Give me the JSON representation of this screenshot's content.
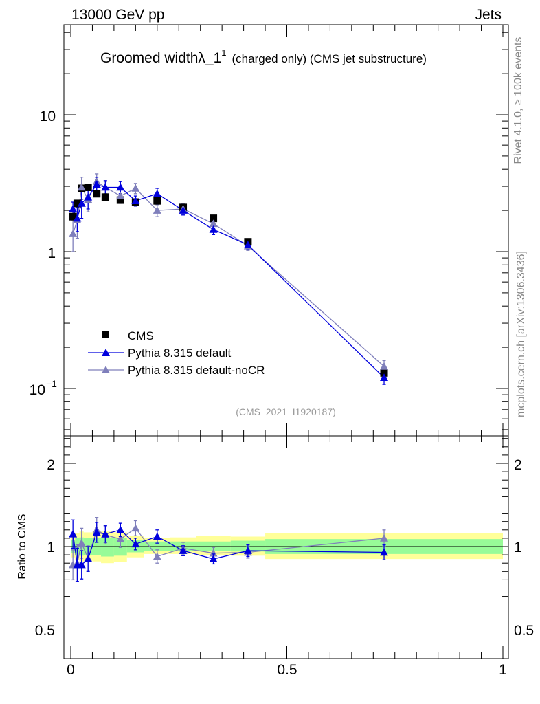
{
  "header": {
    "left_label": "13000 GeV pp",
    "right_label": "Jets"
  },
  "side_labels": {
    "rivet": "Rivet 4.1.0, ≥ 100k events",
    "source": "mcplots.cern.ch [arXiv:1306.3436]"
  },
  "colors": {
    "data": "#000000",
    "pythia_default": "#0000dd",
    "pythia_nocr": "#7f7fbb",
    "band_inner": "#98fb98",
    "band_outer": "#ffff99"
  },
  "chart_data": [
    {
      "type": "scatter",
      "title_main": "Groomed widthλ_1",
      "title_sup": "1",
      "title_suffix": "(charged only) (CMS jet substructure)",
      "watermark": "(CMS_2021_I1920187)",
      "yscale": "log",
      "xlim": [
        0,
        1
      ],
      "ylim": [
        0.05,
        50
      ],
      "ytick_labels": [
        {
          "value": 10,
          "label": "10"
        },
        {
          "value": 1,
          "label": "1"
        },
        {
          "value": 0.1,
          "label": "10",
          "sup": "−1"
        }
      ],
      "legend": {
        "placement": "lower-left",
        "entries": [
          "CMS",
          "Pythia 8.315 default",
          "Pythia 8.315 default-noCR"
        ]
      },
      "series": [
        {
          "name": "CMS",
          "marker": "square",
          "x": [
            0.005,
            0.015,
            0.025,
            0.04,
            0.06,
            0.08,
            0.115,
            0.15,
            0.2,
            0.26,
            0.33,
            0.41,
            0.725
          ],
          "y": [
            1.8,
            2.25,
            2.9,
            2.95,
            2.65,
            2.5,
            2.38,
            2.3,
            2.35,
            2.1,
            1.75,
            1.18,
            0.13
          ]
        },
        {
          "name": "Pythia 8.315 default",
          "marker": "triangle",
          "x": [
            0.005,
            0.015,
            0.025,
            0.04,
            0.06,
            0.08,
            0.115,
            0.15,
            0.2,
            0.26,
            0.33,
            0.41,
            0.725
          ],
          "y": [
            2.05,
            1.75,
            2.25,
            2.5,
            3.1,
            2.95,
            2.95,
            2.35,
            2.65,
            2.0,
            1.45,
            1.12,
            0.12
          ],
          "err": [
            0.25,
            0.35,
            0.5,
            0.45,
            0.4,
            0.35,
            0.3,
            0.2,
            0.25,
            0.15,
            0.12,
            0.08,
            0.013
          ]
        },
        {
          "name": "Pythia 8.315 default-noCR",
          "marker": "triangle",
          "x": [
            0.005,
            0.015,
            0.025,
            0.04,
            0.06,
            0.08,
            0.115,
            0.15,
            0.2,
            0.26,
            0.33,
            0.41,
            0.725
          ],
          "y": [
            1.35,
            1.7,
            2.95,
            2.4,
            3.25,
            2.95,
            2.55,
            2.9,
            2.0,
            2.05,
            1.6,
            1.1,
            0.145
          ],
          "err": [
            0.35,
            0.45,
            0.55,
            0.45,
            0.45,
            0.3,
            0.3,
            0.25,
            0.2,
            0.18,
            0.12,
            0.08,
            0.015
          ]
        }
      ]
    },
    {
      "type": "scatter",
      "ylabel": "Ratio to CMS",
      "xlim": [
        0,
        1
      ],
      "ylim": [
        0.4,
        2.4
      ],
      "reference_line": 1.0,
      "xtick_labels": [
        "0",
        "0.5",
        "1"
      ],
      "ytick_labels": [
        "2",
        "1",
        "0.5"
      ],
      "bands": [
        {
          "x0": 0.0,
          "x1": 0.01,
          "inner": [
            0.92,
            1.08
          ],
          "outer": [
            0.87,
            1.13
          ]
        },
        {
          "x0": 0.01,
          "x1": 0.02,
          "inner": [
            0.9,
            1.1
          ],
          "outer": [
            0.84,
            1.16
          ]
        },
        {
          "x0": 0.02,
          "x1": 0.03,
          "inner": [
            0.89,
            1.11
          ],
          "outer": [
            0.82,
            1.18
          ]
        },
        {
          "x0": 0.03,
          "x1": 0.05,
          "inner": [
            0.9,
            1.1
          ],
          "outer": [
            0.83,
            1.17
          ]
        },
        {
          "x0": 0.05,
          "x1": 0.07,
          "inner": [
            0.9,
            1.1
          ],
          "outer": [
            0.82,
            1.18
          ]
        },
        {
          "x0": 0.07,
          "x1": 0.1,
          "inner": [
            0.88,
            1.11
          ],
          "outer": [
            0.8,
            1.18
          ]
        },
        {
          "x0": 0.1,
          "x1": 0.13,
          "inner": [
            0.89,
            1.1
          ],
          "outer": [
            0.81,
            1.17
          ]
        },
        {
          "x0": 0.13,
          "x1": 0.17,
          "inner": [
            0.93,
            1.08
          ],
          "outer": [
            0.87,
            1.13
          ]
        },
        {
          "x0": 0.17,
          "x1": 0.23,
          "inner": [
            0.95,
            1.06
          ],
          "outer": [
            0.91,
            1.1
          ]
        },
        {
          "x0": 0.23,
          "x1": 0.29,
          "inner": [
            0.95,
            1.06
          ],
          "outer": [
            0.91,
            1.11
          ]
        },
        {
          "x0": 0.29,
          "x1": 0.37,
          "inner": [
            0.95,
            1.06
          ],
          "outer": [
            0.9,
            1.13
          ]
        },
        {
          "x0": 0.37,
          "x1": 0.45,
          "inner": [
            0.94,
            1.07
          ],
          "outer": [
            0.89,
            1.12
          ]
        },
        {
          "x0": 0.45,
          "x1": 1.0,
          "inner": [
            0.91,
            1.09
          ],
          "outer": [
            0.85,
            1.16
          ]
        }
      ],
      "series": [
        {
          "name": "Pythia 8.315 default",
          "x": [
            0.005,
            0.015,
            0.025,
            0.04,
            0.06,
            0.08,
            0.115,
            0.15,
            0.2,
            0.26,
            0.33,
            0.41,
            0.725
          ],
          "y": [
            1.15,
            0.78,
            0.78,
            0.85,
            1.17,
            1.15,
            1.2,
            1.03,
            1.12,
            0.95,
            0.85,
            0.95,
            0.93
          ],
          "err": [
            0.17,
            0.2,
            0.17,
            0.15,
            0.12,
            0.1,
            0.08,
            0.07,
            0.08,
            0.06,
            0.06,
            0.07,
            0.09
          ]
        },
        {
          "name": "Pythia 8.315 default-noCR",
          "x": [
            0.005,
            0.015,
            0.025,
            0.04,
            0.06,
            0.08,
            0.115,
            0.15,
            0.2,
            0.26,
            0.33,
            0.41,
            0.725
          ],
          "y": [
            0.78,
            0.8,
            1.04,
            0.86,
            1.2,
            1.14,
            1.09,
            1.22,
            0.88,
            0.98,
            0.92,
            0.93,
            1.1
          ],
          "err": [
            0.18,
            0.22,
            0.18,
            0.15,
            0.15,
            0.11,
            0.1,
            0.09,
            0.08,
            0.07,
            0.07,
            0.07,
            0.1
          ]
        }
      ]
    }
  ]
}
